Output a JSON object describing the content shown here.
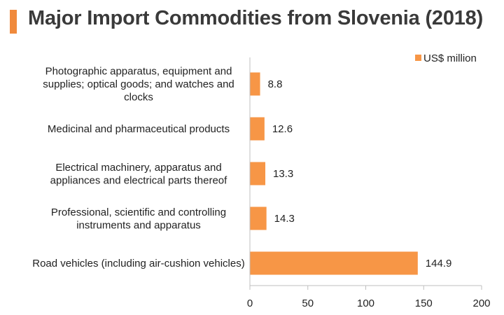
{
  "title": "Major Import Commodities from Slovenia (2018)",
  "colors": {
    "accent": "#f08a3c",
    "bar": "#f79646",
    "axis": "#bfbfbf"
  },
  "chart_data": {
    "type": "bar",
    "orientation": "horizontal",
    "categories": [
      "Photographic apparatus, equipment and supplies; optical goods; and watches and clocks",
      "Medicinal and pharmaceutical products",
      "Electrical machinery, apparatus and appliances and electrical parts thereof",
      "Professional, scientific and controlling instruments and apparatus",
      "Road vehicles (including air-cushion vehicles)"
    ],
    "category_lines": [
      [
        "Photographic apparatus, equipment and",
        "supplies; optical goods; and watches and",
        "clocks"
      ],
      [
        "Medicinal and pharmaceutical products"
      ],
      [
        "Electrical machinery, apparatus and",
        "appliances and electrical parts thereof"
      ],
      [
        "Professional, scientific and controlling",
        "instruments and apparatus"
      ],
      [
        "Road vehicles (including air-cushion vehicles)"
      ]
    ],
    "series": [
      {
        "name": "US$ million",
        "values": [
          8.8,
          12.6,
          13.3,
          14.3,
          144.9
        ]
      }
    ],
    "value_labels": [
      "8.8",
      "12.6",
      "13.3",
      "14.3",
      "144.9"
    ],
    "xlim": [
      0,
      200
    ],
    "xticks": [
      0,
      50,
      100,
      150,
      200
    ],
    "xlabel": "",
    "ylabel": "",
    "grid": false,
    "legend_position": "top-right"
  }
}
